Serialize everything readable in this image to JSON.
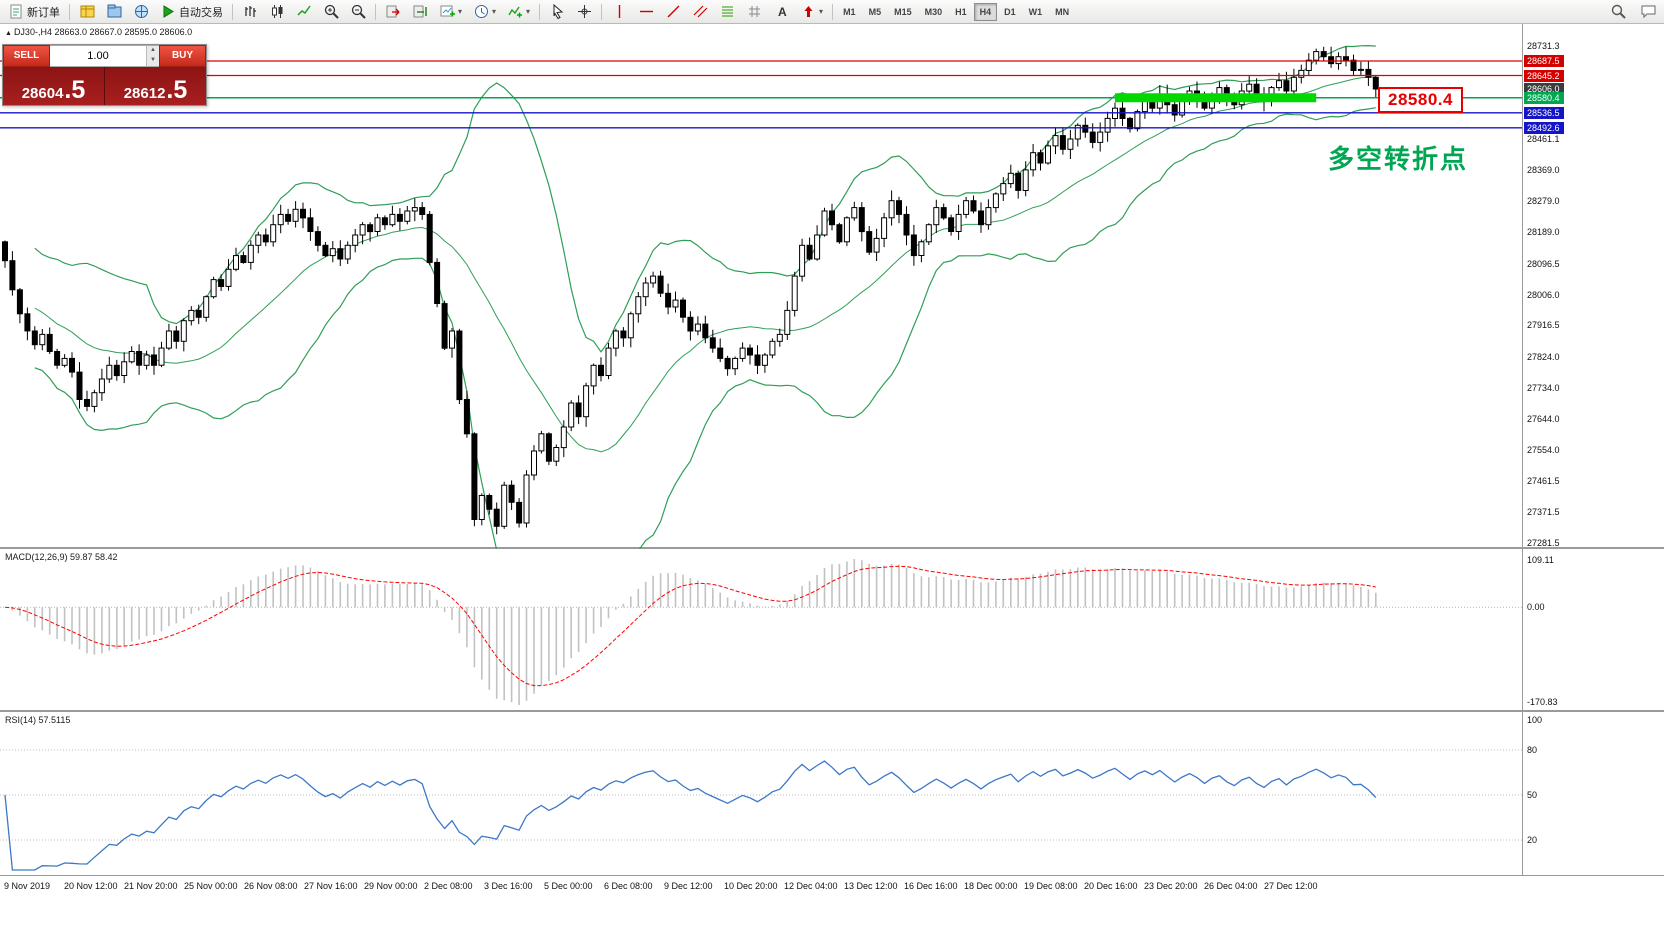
{
  "toolbar": {
    "items": [
      {
        "name": "new-order",
        "icon": "new-order",
        "label": "新订单"
      },
      {
        "sep": true
      },
      {
        "name": "charts-bar",
        "icon": "market-watch"
      },
      {
        "name": "profiles",
        "icon": "profiles"
      },
      {
        "name": "data-window",
        "icon": "data-window"
      },
      {
        "name": "auto-trading",
        "icon": "play",
        "label": "自动交易"
      },
      {
        "sep": true
      },
      {
        "name": "bar-chart",
        "icon": "bars"
      },
      {
        "name": "candle-chart",
        "icon": "candles"
      },
      {
        "name": "line-chart",
        "icon": "line"
      },
      {
        "name": "zoom-in",
        "icon": "zoom-in"
      },
      {
        "name": "zoom-out",
        "icon": "zoom-out"
      },
      {
        "sep": true
      },
      {
        "name": "auto-scroll",
        "icon": "auto-scroll"
      },
      {
        "name": "chart-shift",
        "icon": "chart-shift"
      },
      {
        "name": "new-chart",
        "icon": "new-chart",
        "dropdown": true
      },
      {
        "name": "period",
        "icon": "period",
        "dropdown": true
      },
      {
        "name": "indicators",
        "icon": "indicators",
        "dropdown": true
      },
      {
        "sep": true
      },
      {
        "name": "cursor",
        "icon": "cursor"
      },
      {
        "name": "crosshair",
        "icon": "crosshair"
      },
      {
        "sep": true
      },
      {
        "name": "vertical-line",
        "icon": "vline"
      },
      {
        "name": "horizontal-line",
        "icon": "hline"
      },
      {
        "name": "trendline",
        "icon": "trendline"
      },
      {
        "name": "channel",
        "icon": "channel"
      },
      {
        "name": "fibonacci",
        "icon": "fibo"
      },
      {
        "name": "grid",
        "icon": "grid"
      },
      {
        "name": "text",
        "icon": "text"
      },
      {
        "name": "arrows",
        "icon": "arrows",
        "dropdown": true
      },
      {
        "sep": true
      }
    ],
    "timeframes": [
      "M1",
      "M5",
      "M15",
      "M30",
      "H1",
      "H4",
      "D1",
      "W1",
      "MN"
    ],
    "active_timeframe": "H4",
    "right_items": [
      {
        "name": "search",
        "icon": "search"
      },
      {
        "name": "chat",
        "icon": "chat"
      }
    ]
  },
  "chart": {
    "collapse_glyph": "▲",
    "symbol_header": "DJ30-,H4 28663.0 28667.0 28595.0 28606.0",
    "trade_panel": {
      "sell_label": "SELL",
      "buy_label": "BUY",
      "volume": "1.00",
      "sell_price_main": "28604",
      "sell_price_frac": ".5",
      "buy_price_main": "28612",
      "buy_price_frac": ".5"
    },
    "annotation_price": "28580.4",
    "annotation_text": "多空转折点",
    "price_scale_ticks": [
      "28731.3",
      "28461.1",
      "28369.0",
      "28279.0",
      "28189.0",
      "28096.5",
      "28006.0",
      "27916.5",
      "27824.0",
      "27734.0",
      "27644.0",
      "27554.0",
      "27461.5",
      "27371.5",
      "27281.5"
    ],
    "line_labels": [
      {
        "value": "28687.5",
        "price": 28687.5,
        "bg": "#d40000"
      },
      {
        "value": "28645.2",
        "price": 28645.2,
        "bg": "#d40000"
      },
      {
        "value": "28606.0",
        "price": 28606.0,
        "bg": "#3c3c3c"
      },
      {
        "value": "28580.4",
        "price": 28580.4,
        "bg": "#00a651"
      },
      {
        "value": "28536.5",
        "price": 28536.5,
        "bg": "#1414c8"
      },
      {
        "value": "28492.6",
        "price": 28492.6,
        "bg": "#1414c8"
      }
    ]
  },
  "macd": {
    "label": "MACD(12,26,9) 59.87 58.42",
    "scale_top": "109.11",
    "scale_zero": "0.00",
    "scale_bottom": "-170.83"
  },
  "rsi": {
    "label": "RSI(14) 57.5115",
    "scale_labels": [
      "100",
      "80",
      "50",
      "20"
    ],
    "levels": [
      80,
      50,
      20
    ]
  },
  "time_axis": [
    "9 Nov 2019",
    "20 Nov 12:00",
    "21 Nov 20:00",
    "25 Nov 00:00",
    "26 Nov 08:00",
    "27 Nov 16:00",
    "29 Nov 00:00",
    "2 Dec 08:00",
    "3 Dec 16:00",
    "5 Dec 00:00",
    "6 Dec 08:00",
    "9 Dec 12:00",
    "10 Dec 20:00",
    "12 Dec 04:00",
    "13 Dec 12:00",
    "16 Dec 16:00",
    "18 Dec 00:00",
    "19 Dec 08:00",
    "20 Dec 16:00",
    "23 Dec 20:00",
    "26 Dec 04:00",
    "27 Dec 12:00"
  ],
  "chart_data": {
    "type": "candlestick",
    "symbol": "DJ30-",
    "timeframe": "H4",
    "ohlc_header": {
      "open": 28663.0,
      "high": 28667.0,
      "low": 28595.0,
      "close": 28606.0
    },
    "price_axis": {
      "top_label": 28731.3,
      "bottom_label": 27281.5
    },
    "first_open": 28160,
    "closes": [
      28105,
      28020,
      27950,
      27900,
      27860,
      27890,
      27840,
      27800,
      27820,
      27780,
      27700,
      27680,
      27720,
      27760,
      27800,
      27770,
      27810,
      27840,
      27800,
      27830,
      27800,
      27850,
      27900,
      27870,
      27930,
      27960,
      27940,
      28000,
      28050,
      28030,
      28080,
      28120,
      28100,
      28150,
      28180,
      28160,
      28210,
      28240,
      28220,
      28255,
      28230,
      28190,
      28150,
      28120,
      28140,
      28110,
      28150,
      28180,
      28210,
      28190,
      28230,
      28210,
      28240,
      28220,
      28250,
      28260,
      28240,
      28100,
      27980,
      27850,
      27900,
      27700,
      27600,
      27350,
      27420,
      27380,
      27330,
      27450,
      27400,
      27340,
      27480,
      27550,
      27600,
      27520,
      27560,
      27620,
      27690,
      27650,
      27740,
      27800,
      27770,
      27850,
      27900,
      27880,
      27950,
      28000,
      28040,
      28060,
      28010,
      27970,
      27990,
      27940,
      27900,
      27920,
      27880,
      27850,
      27820,
      27790,
      27820,
      27850,
      27830,
      27800,
      27830,
      27870,
      27890,
      27960,
      28060,
      28150,
      28110,
      28180,
      28250,
      28210,
      28160,
      28230,
      28260,
      28190,
      28130,
      28170,
      28230,
      28280,
      28240,
      28180,
      28120,
      28160,
      28210,
      28260,
      28230,
      28190,
      28240,
      28280,
      28250,
      28210,
      28260,
      28300,
      28330,
      28360,
      28310,
      28370,
      28420,
      28390,
      28440,
      28470,
      28430,
      28460,
      28500,
      28480,
      28450,
      28480,
      28520,
      28550,
      28520,
      28490,
      28540,
      28570,
      28550,
      28590,
      28560,
      28530,
      28570,
      28600,
      28580,
      28550,
      28590,
      28610,
      28580,
      28560,
      28600,
      28620,
      28590,
      28570,
      28610,
      28630,
      28600,
      28640,
      28660,
      28690,
      28715,
      28700,
      28680,
      28700,
      28690,
      28660,
      28663,
      28640,
      28606
    ],
    "indicators": {
      "bollinger": {
        "period": 20,
        "deviation": 2
      },
      "macd": [
        12,
        26,
        9
      ],
      "rsi": 14
    },
    "hlines": [
      {
        "price": 28687.5,
        "color": "#e00000",
        "width": 1.3
      },
      {
        "price": 28645.2,
        "color": "#e00000",
        "width": 1.3
      },
      {
        "price": 28580.4,
        "color": "#00a651",
        "width": 1.5
      },
      {
        "price": 28536.5,
        "color": "#1414c8",
        "width": 1.3
      },
      {
        "price": 28492.6,
        "color": "#1414c8",
        "width": 1.3
      }
    ],
    "thick_segment": {
      "price": 28580.4,
      "start_index": 149,
      "end_index": 176,
      "color": "#00d800",
      "thickness": 9
    }
  }
}
